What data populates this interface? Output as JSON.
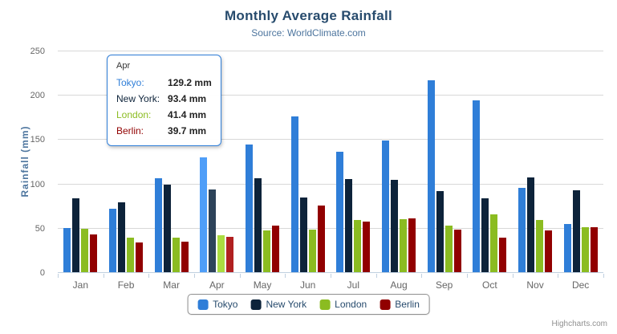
{
  "chart_data": {
    "type": "bar",
    "title": "Monthly Average Rainfall",
    "subtitle": "Source: WorldClimate.com",
    "xlabel": "",
    "ylabel": "Rainfall (mm)",
    "ylim": [
      0,
      250
    ],
    "yticks": [
      0,
      50,
      100,
      150,
      200,
      250
    ],
    "grid": true,
    "legend_position": "bottom",
    "categories": [
      "Jan",
      "Feb",
      "Mar",
      "Apr",
      "May",
      "Jun",
      "Jul",
      "Aug",
      "Sep",
      "Oct",
      "Nov",
      "Dec"
    ],
    "series": [
      {
        "name": "Tokyo",
        "color": "#2f7ed8",
        "hover_color": "#4f9ef8",
        "values": [
          49.9,
          71.5,
          106.4,
          129.2,
          144.0,
          176.0,
          135.6,
          148.5,
          216.4,
          194.1,
          95.6,
          54.4
        ]
      },
      {
        "name": "New York",
        "color": "#0d233a",
        "hover_color": "#2d435a",
        "values": [
          83.6,
          78.8,
          98.5,
          93.4,
          106.0,
          84.5,
          105.0,
          104.3,
          91.2,
          83.5,
          106.6,
          92.3
        ]
      },
      {
        "name": "London",
        "color": "#8bbc21",
        "hover_color": "#abdc41",
        "values": [
          48.9,
          38.8,
          39.3,
          41.4,
          47.0,
          48.3,
          59.0,
          59.6,
          52.4,
          65.2,
          59.3,
          51.2
        ]
      },
      {
        "name": "Berlin",
        "color": "#910000",
        "hover_color": "#b12020",
        "values": [
          42.4,
          33.2,
          34.5,
          39.7,
          52.6,
          75.5,
          57.4,
          60.4,
          47.6,
          39.1,
          46.8,
          51.1
        ]
      }
    ],
    "hovered_category_index": 3
  },
  "tooltip": {
    "header": "Apr",
    "border_color": "#2f7ed8",
    "rows": [
      {
        "label": "Tokyo:",
        "value": "129.2 mm",
        "color": "#2f7ed8"
      },
      {
        "label": "New York:",
        "value": "93.4 mm",
        "color": "#0d233a"
      },
      {
        "label": "London:",
        "value": "41.4 mm",
        "color": "#8bbc21"
      },
      {
        "label": "Berlin:",
        "value": "39.7 mm",
        "color": "#910000"
      }
    ]
  },
  "credits": "Highcharts.com",
  "icons": {
    "export_menu": "hamburger-icon"
  },
  "colors": {
    "title": "#274b6d",
    "subtitle": "#4d759e",
    "axis_title": "#4d759e",
    "axis_labels": "#666666",
    "gridline": "#d8d8d8",
    "axis_line": "#c0d0e0",
    "legend_border": "#909090",
    "legend_text": "#274b6d"
  }
}
